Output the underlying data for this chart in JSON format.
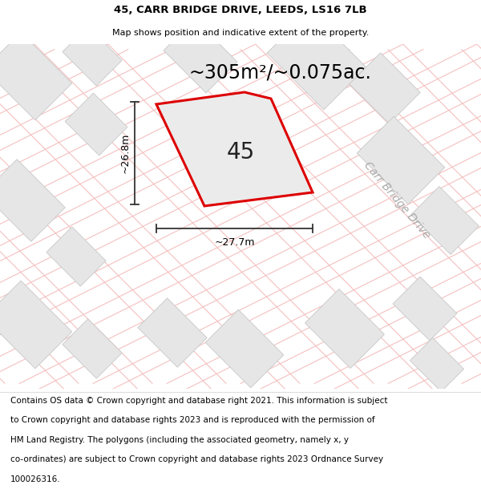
{
  "title_line1": "45, CARR BRIDGE DRIVE, LEEDS, LS16 7LB",
  "title_line2": "Map shows position and indicative extent of the property.",
  "area_text": "~305m²/~0.075ac.",
  "property_number": "45",
  "width_label": "~27.7m",
  "height_label": "~26.8m",
  "street_label": "Carr Bridge Drive",
  "footer_lines": [
    "Contains OS data © Crown copyright and database right 2021. This information is subject",
    "to Crown copyright and database rights 2023 and is reproduced with the permission of",
    "HM Land Registry. The polygons (including the associated geometry, namely x, y",
    "co-ordinates) are subject to Crown copyright and database rights 2023 Ordnance Survey",
    "100026316."
  ],
  "plot_fill": "#ebebeb",
  "plot_edge": "#dd0000",
  "road_line_color": "#f5c0c0",
  "road_line_color2": "#c8c8c8",
  "building_fill": "#e6e6e6",
  "building_edge": "#c8c8c8",
  "title_fontsize": 9.5,
  "subtitle_fontsize": 8.0,
  "area_fontsize": 17,
  "number_fontsize": 20,
  "dim_fontsize": 9,
  "street_fontsize": 10,
  "footer_fontsize": 7.5
}
